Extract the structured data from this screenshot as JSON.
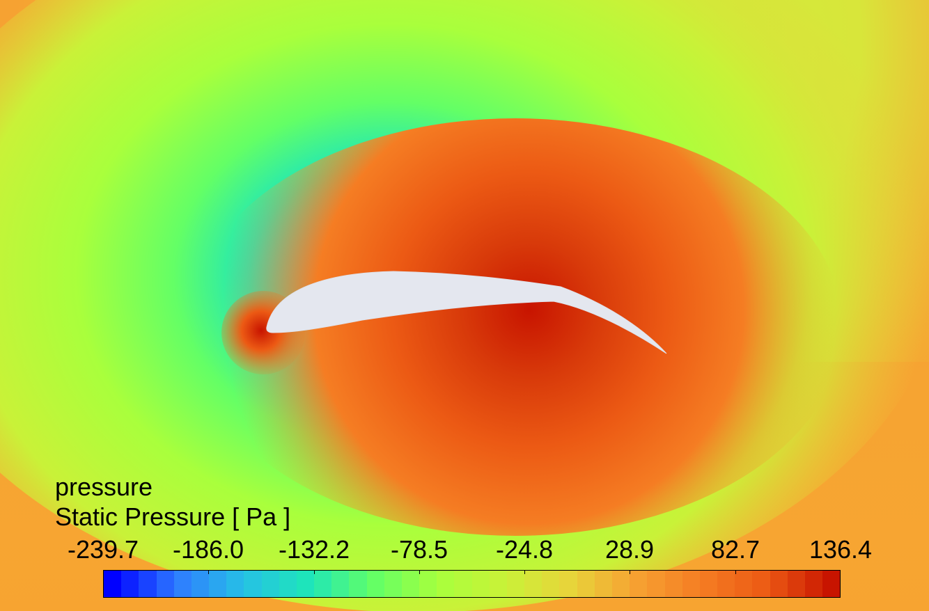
{
  "legend": {
    "title": "pressure",
    "variable": "Static Pressure [ Pa ]",
    "ticks": [
      "-239.7",
      "-186.0",
      "-132.2",
      "-78.5",
      "-24.8",
      "28.9",
      "82.7",
      "136.4"
    ],
    "min": -239.7,
    "max": 136.4,
    "levels": 42
  },
  "colors": {
    "min": "#0000ff",
    "max": "#c81400",
    "airfoil": "#e4e7ef",
    "stops": [
      "#0000ff",
      "#2f7dff",
      "#26c0e6",
      "#1ee6b9",
      "#63ff66",
      "#a9ff3c",
      "#c9f238",
      "#e8d43a",
      "#f6a232",
      "#f57d23",
      "#ec5a14",
      "#c81400"
    ]
  }
}
